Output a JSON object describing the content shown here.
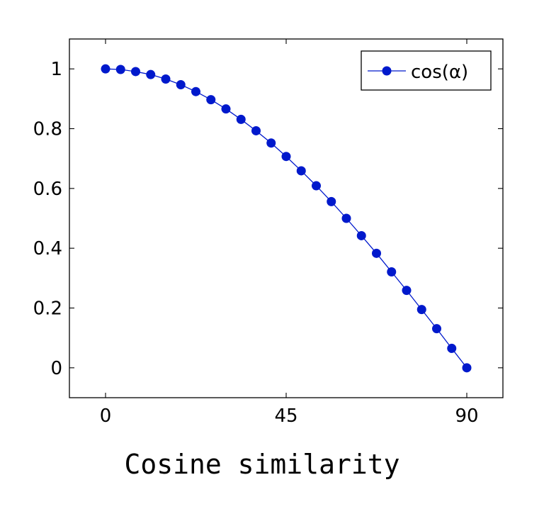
{
  "chart_data": {
    "type": "line",
    "title": "",
    "xlabel": "",
    "ylabel": "",
    "caption": "Cosine similarity",
    "xlim": [
      -9,
      99
    ],
    "ylim": [
      -0.1,
      1.1
    ],
    "x_ticks": [
      0,
      45,
      90
    ],
    "y_ticks": [
      0,
      0.2,
      0.4,
      0.6,
      0.8,
      1
    ],
    "x_tick_labels": [
      "0",
      "45",
      "90"
    ],
    "y_tick_labels": [
      "0",
      "0.2",
      "0.4",
      "0.6",
      "0.8",
      "1"
    ],
    "grid": false,
    "legend": {
      "position": "top-right",
      "entries": [
        "cos(α)"
      ]
    },
    "series": [
      {
        "name": "cos(α)",
        "color": "#0019cc",
        "marker": "circle",
        "x": [
          0,
          3.75,
          7.5,
          11.25,
          15,
          18.75,
          22.5,
          26.25,
          30,
          33.75,
          37.5,
          41.25,
          45,
          48.75,
          52.5,
          56.25,
          60,
          63.75,
          67.5,
          71.25,
          75,
          78.75,
          82.5,
          86.25,
          90
        ],
        "y": [
          1.0,
          0.998,
          0.991,
          0.981,
          0.966,
          0.947,
          0.924,
          0.897,
          0.866,
          0.831,
          0.793,
          0.752,
          0.707,
          0.659,
          0.609,
          0.556,
          0.5,
          0.442,
          0.383,
          0.321,
          0.259,
          0.195,
          0.131,
          0.065,
          0.0
        ]
      }
    ]
  }
}
